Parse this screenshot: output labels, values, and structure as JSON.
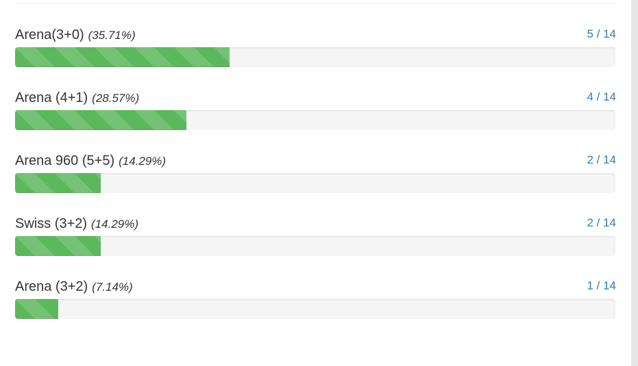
{
  "items": [
    {
      "name": "Arena(3+0)",
      "percent": 35.71,
      "percent_label": "(35.71%)",
      "count_label": "5 / 14"
    },
    {
      "name": "Arena (4+1)",
      "percent": 28.57,
      "percent_label": "(28.57%)",
      "count_label": "4 / 14"
    },
    {
      "name": "Arena 960 (5+5)",
      "percent": 14.29,
      "percent_label": "(14.29%)",
      "count_label": "2 / 14"
    },
    {
      "name": "Swiss (3+2)",
      "percent": 14.29,
      "percent_label": "(14.29%)",
      "count_label": "2 / 14"
    },
    {
      "name": "Arena (3+2)",
      "percent": 7.14,
      "percent_label": "(7.14%)",
      "count_label": "1 / 14"
    }
  ]
}
